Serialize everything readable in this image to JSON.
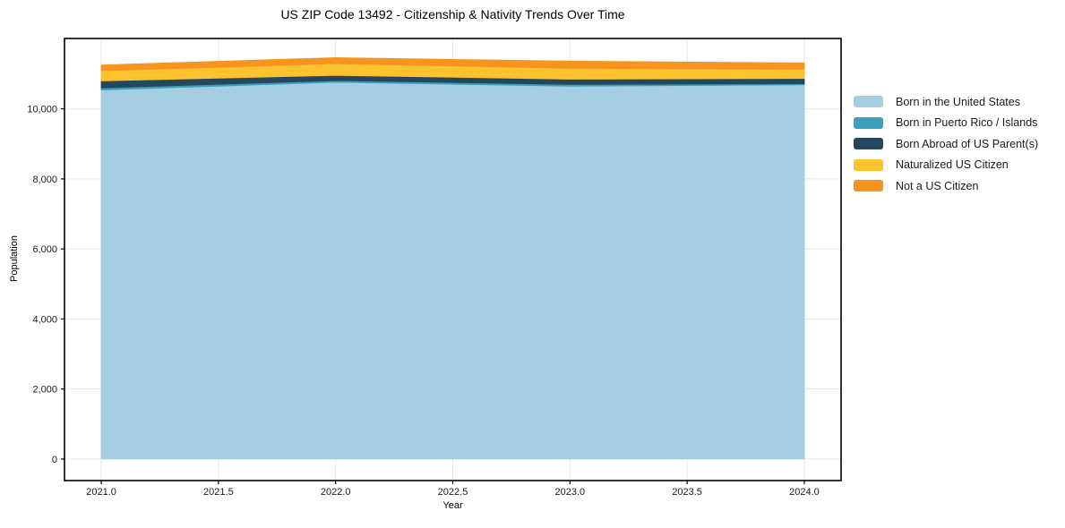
{
  "title": "US ZIP Code 13492 - Citizenship & Nativity Trends Over Time",
  "chart_data": {
    "type": "area",
    "stacked": true,
    "title": "US ZIP Code 13492 - Citizenship & Nativity Trends Over Time",
    "xlabel": "Year",
    "ylabel": "Population",
    "x": [
      2021,
      2022,
      2023,
      2024
    ],
    "series": [
      {
        "name": "Born in the United States",
        "color": "#a6cee3",
        "values": [
          10540,
          10760,
          10650,
          10690
        ]
      },
      {
        "name": "Born in Puerto Rico / Islands",
        "color": "#3c9fbb",
        "values": [
          60,
          50,
          50,
          30
        ]
      },
      {
        "name": "Born Abroad of US Parent(s)",
        "color": "#24475e",
        "values": [
          200,
          150,
          150,
          150
        ]
      },
      {
        "name": "Naturalized US Citizen",
        "color": "#fdc32f",
        "values": [
          290,
          330,
          310,
          260
        ]
      },
      {
        "name": "Not a US Citizen",
        "color": "#f79420",
        "values": [
          160,
          170,
          200,
          180
        ]
      }
    ],
    "stack_totals": [
      11250,
      11460,
      11360,
      11310
    ],
    "xlim": [
      2020.843,
      2024.157
    ],
    "ylim": [
      -615,
      12010
    ],
    "xticks": {
      "values": [
        2021.0,
        2021.5,
        2022.0,
        2022.5,
        2023.0,
        2023.5,
        2024.0
      ],
      "labels": [
        "2021.0",
        "2021.5",
        "2022.0",
        "2022.5",
        "2023.0",
        "2023.5",
        "2024.0"
      ]
    },
    "yticks": {
      "values": [
        0,
        2000,
        4000,
        6000,
        8000,
        10000
      ],
      "labels": [
        "0",
        "2,000",
        "4,000",
        "6,000",
        "8,000",
        "10,000"
      ]
    },
    "grid": true,
    "grid_color": "#e7e7e7",
    "spine_color": "#000000",
    "tick_color": "#000000",
    "tick_label_color": "#1a1a1a",
    "legend_position": "right-outside"
  }
}
